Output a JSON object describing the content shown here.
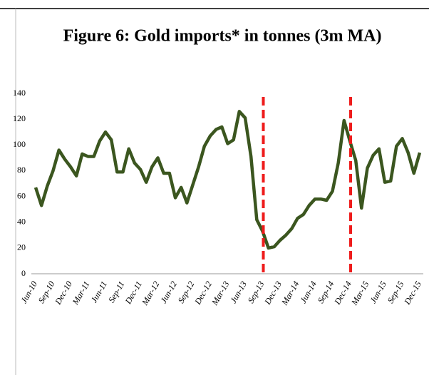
{
  "chart_data": {
    "type": "line",
    "title": "Figure 6: Gold imports* in tonnes (3m MA)",
    "categories": [
      "Jun-10",
      null,
      null,
      "Sep-10",
      null,
      null,
      "Dec-10",
      null,
      null,
      "Mar-11",
      null,
      null,
      "Jun-11",
      null,
      null,
      "Sep-11",
      null,
      null,
      "Dec-11",
      null,
      null,
      "Mar-12",
      null,
      null,
      "Jun-12",
      null,
      null,
      "Sep-12",
      null,
      null,
      "Dec-12",
      null,
      null,
      "Mar-13",
      null,
      null,
      "Jun-13",
      null,
      null,
      "Sep-13",
      null,
      null,
      "Dec-13",
      null,
      null,
      "Mar-14",
      null,
      null,
      "Jun-14",
      null,
      null,
      "Sep-14",
      null,
      null,
      "Dec-14",
      null,
      null,
      "Mar-15",
      null,
      null,
      "Jun-15",
      null,
      null,
      "Sep-15",
      null,
      null,
      "Dec-15"
    ],
    "series": [
      {
        "color": "#3b561f",
        "values": [
          67,
          53,
          68,
          80,
          96,
          89,
          83,
          76,
          93,
          91,
          91,
          103,
          110,
          104,
          79,
          79,
          97,
          86,
          81,
          71,
          83,
          90,
          78,
          78,
          59,
          67,
          55,
          69,
          83,
          99,
          107,
          112,
          114,
          101,
          104,
          126,
          121,
          91,
          42,
          33,
          20,
          21,
          26,
          30,
          35,
          43,
          46,
          53,
          58,
          58,
          57,
          64,
          86,
          119,
          103,
          88,
          51,
          82,
          92,
          97,
          71,
          72,
          99,
          105,
          94,
          78,
          94
        ]
      }
    ],
    "reference_lines": {
      "color": "#ee1c1c",
      "at": [
        "Sep-13",
        "Dec-14"
      ]
    },
    "ylim": [
      0,
      140
    ],
    "yticks": [
      0,
      20,
      40,
      60,
      80,
      100,
      120,
      140
    ]
  }
}
